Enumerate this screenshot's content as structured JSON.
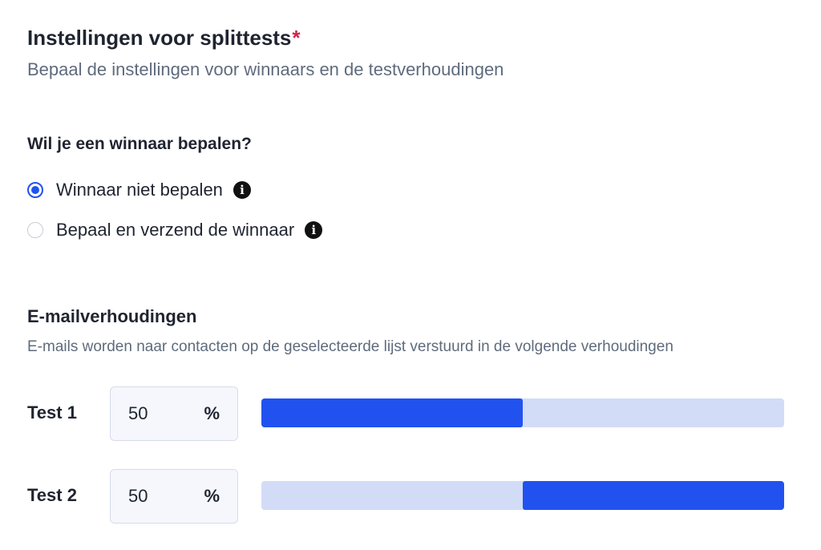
{
  "header": {
    "title": "Instellingen voor splittests",
    "required_marker": "*",
    "subtitle": "Bepaal de instellingen voor winnaars en de testverhoudingen"
  },
  "winner": {
    "question": "Wil je een winnaar bepalen?",
    "options": [
      {
        "label": "Winnaar niet bepalen",
        "selected": true,
        "info_icon": "info-icon"
      },
      {
        "label": "Bepaal en verzend de winnaar",
        "selected": false,
        "info_icon": "info-icon"
      }
    ],
    "info_glyph": "i"
  },
  "ratios": {
    "title": "E-mailverhoudingen",
    "description": "E-mails worden naar contacten op de geselecteerde lijst verstuurd in de volgende verhoudingen",
    "unit": "%",
    "tests": [
      {
        "label": "Test 1",
        "value": "50",
        "fill_start_percent": 0,
        "fill_percent": 50
      },
      {
        "label": "Test 2",
        "value": "50",
        "fill_start_percent": 50,
        "fill_percent": 50
      }
    ]
  },
  "colors": {
    "accent": "#2152f0",
    "bar_track": "#d3dcf7",
    "required": "#d2204a",
    "muted_text": "#5f6b7d"
  }
}
